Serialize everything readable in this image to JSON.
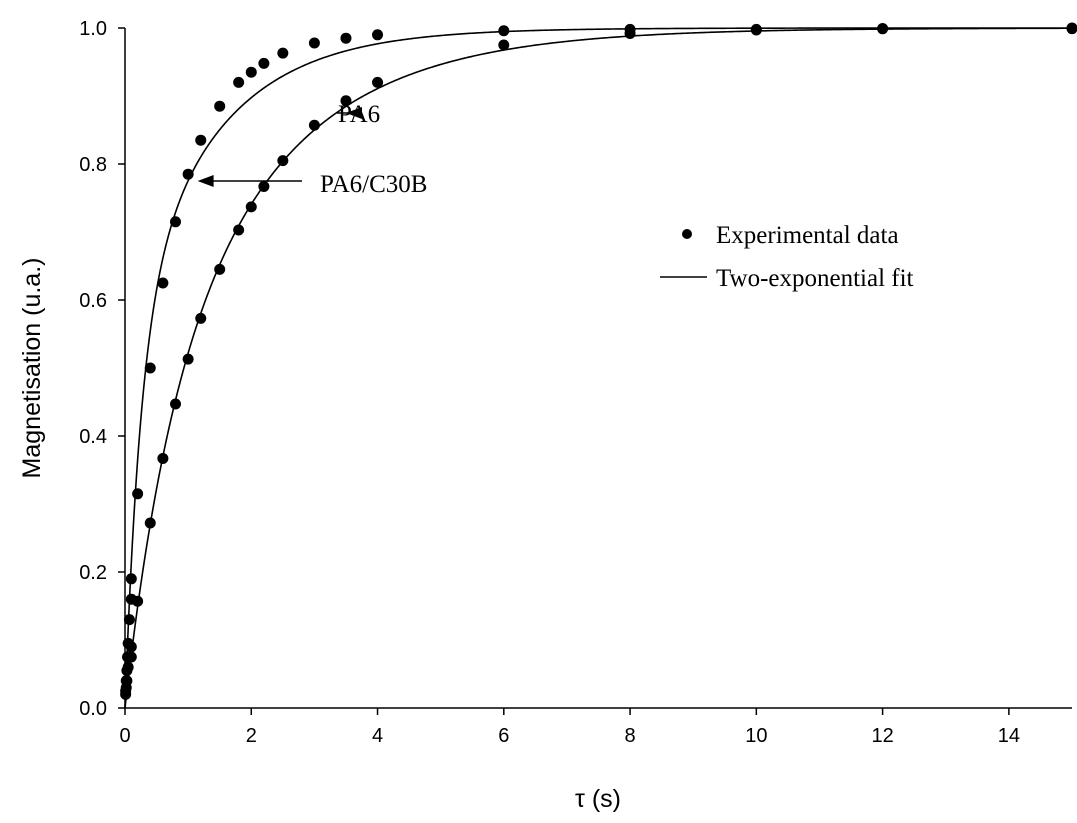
{
  "chart_data": {
    "type": "scatter",
    "xlabel": "τ (s)",
    "ylabel": "Magnetisation (u.a.)",
    "xlim": [
      0,
      15
    ],
    "ylim": [
      0,
      1.0
    ],
    "x_ticks": [
      "0",
      "2",
      "4",
      "6",
      "8",
      "10",
      "12",
      "14"
    ],
    "y_ticks": [
      "0.0",
      "0.2",
      "0.4",
      "0.6",
      "0.8",
      "1.0"
    ],
    "grid": false,
    "legend": {
      "placement": "right",
      "points_label": "Experimental data",
      "fit_label": "Two-exponential fit"
    },
    "annotations": [
      {
        "text": "PA6",
        "points_to": [
          3.5,
          0.875
        ]
      },
      {
        "text": "PA6/C30B",
        "points_to": [
          1.15,
          0.775
        ]
      }
    ],
    "series": [
      {
        "annotation": "PA6/C30B",
        "points": [
          [
            0.01,
            0.025
          ],
          [
            0.02,
            0.04
          ],
          [
            0.03,
            0.055
          ],
          [
            0.04,
            0.075
          ],
          [
            0.05,
            0.095
          ],
          [
            0.07,
            0.13
          ],
          [
            0.1,
            0.16
          ],
          [
            0.1,
            0.19
          ],
          [
            0.2,
            0.315
          ],
          [
            0.4,
            0.5
          ],
          [
            0.6,
            0.625
          ],
          [
            0.8,
            0.715
          ],
          [
            1.0,
            0.785
          ],
          [
            1.2,
            0.835
          ],
          [
            1.5,
            0.885
          ],
          [
            1.8,
            0.92
          ],
          [
            2.0,
            0.935
          ],
          [
            2.2,
            0.948
          ],
          [
            2.5,
            0.963
          ],
          [
            3.0,
            0.978
          ],
          [
            3.5,
            0.985
          ],
          [
            4.0,
            0.99
          ],
          [
            6.0,
            0.996
          ],
          [
            8.0,
            0.998
          ],
          [
            10.0,
            0.998
          ],
          [
            12.0,
            0.999
          ],
          [
            15.0,
            1.0
          ]
        ],
        "fit": {
          "a1": 0.55,
          "t1": 0.25,
          "a2": 0.45,
          "t2": 1.35
        }
      },
      {
        "annotation": "PA6",
        "points": [
          [
            0.01,
            0.02
          ],
          [
            0.02,
            0.03
          ],
          [
            0.03,
            0.04
          ],
          [
            0.05,
            0.06
          ],
          [
            0.1,
            0.075
          ],
          [
            0.1,
            0.09
          ],
          [
            0.2,
            0.157
          ],
          [
            0.4,
            0.272
          ],
          [
            0.6,
            0.367
          ],
          [
            0.8,
            0.447
          ],
          [
            1.0,
            0.513
          ],
          [
            1.2,
            0.573
          ],
          [
            1.5,
            0.645
          ],
          [
            1.8,
            0.703
          ],
          [
            2.0,
            0.737
          ],
          [
            2.2,
            0.767
          ],
          [
            2.5,
            0.805
          ],
          [
            3.0,
            0.857
          ],
          [
            3.5,
            0.893
          ],
          [
            4.0,
            0.92
          ],
          [
            6.0,
            0.975
          ],
          [
            8.0,
            0.992
          ],
          [
            10.0,
            0.997
          ],
          [
            12.0,
            0.999
          ],
          [
            15.0,
            0.999
          ]
        ],
        "fit": {
          "a1": 0.35,
          "t1": 0.7,
          "a2": 0.65,
          "t2": 2.0
        }
      }
    ]
  }
}
